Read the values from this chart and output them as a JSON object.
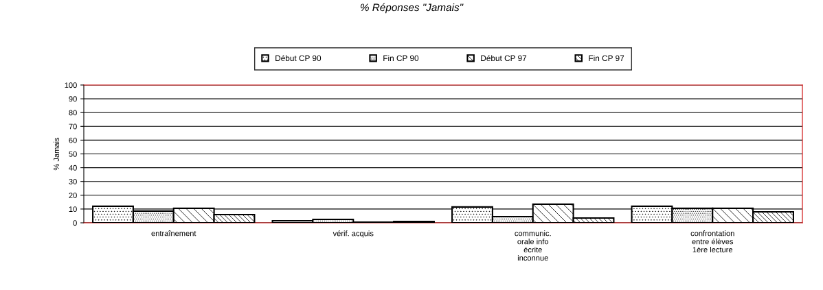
{
  "chart_data": {
    "type": "bar",
    "title": "% Réponses \"Jamais\"",
    "ylabel": "% Jamais",
    "categories": [
      "entraînement",
      "vérif. acquis",
      "communic.\norale info\nécrite\ninconnue",
      "confrontation\nentre élèves\n1ère lecture"
    ],
    "series": [
      {
        "name": "Début CP 90",
        "color": "#000000",
        "values": [
          12,
          1.5,
          11.5,
          12
        ]
      },
      {
        "name": "Fin CP 90",
        "color": "#000000",
        "values": [
          8.5,
          2.5,
          4.5,
          10.5
        ]
      },
      {
        "name": "Début CP 97",
        "color": "#000000",
        "values": [
          10.5,
          0.5,
          13.5,
          10.5
        ]
      },
      {
        "name": "Fin CP 97",
        "color": "#000000",
        "values": [
          6,
          1,
          3.5,
          8
        ]
      }
    ],
    "ylim": [
      0,
      100
    ],
    "yticks": [
      0,
      10,
      20,
      30,
      40,
      50,
      60,
      70,
      80,
      90,
      100
    ],
    "grid": "y",
    "legend": "top"
  }
}
